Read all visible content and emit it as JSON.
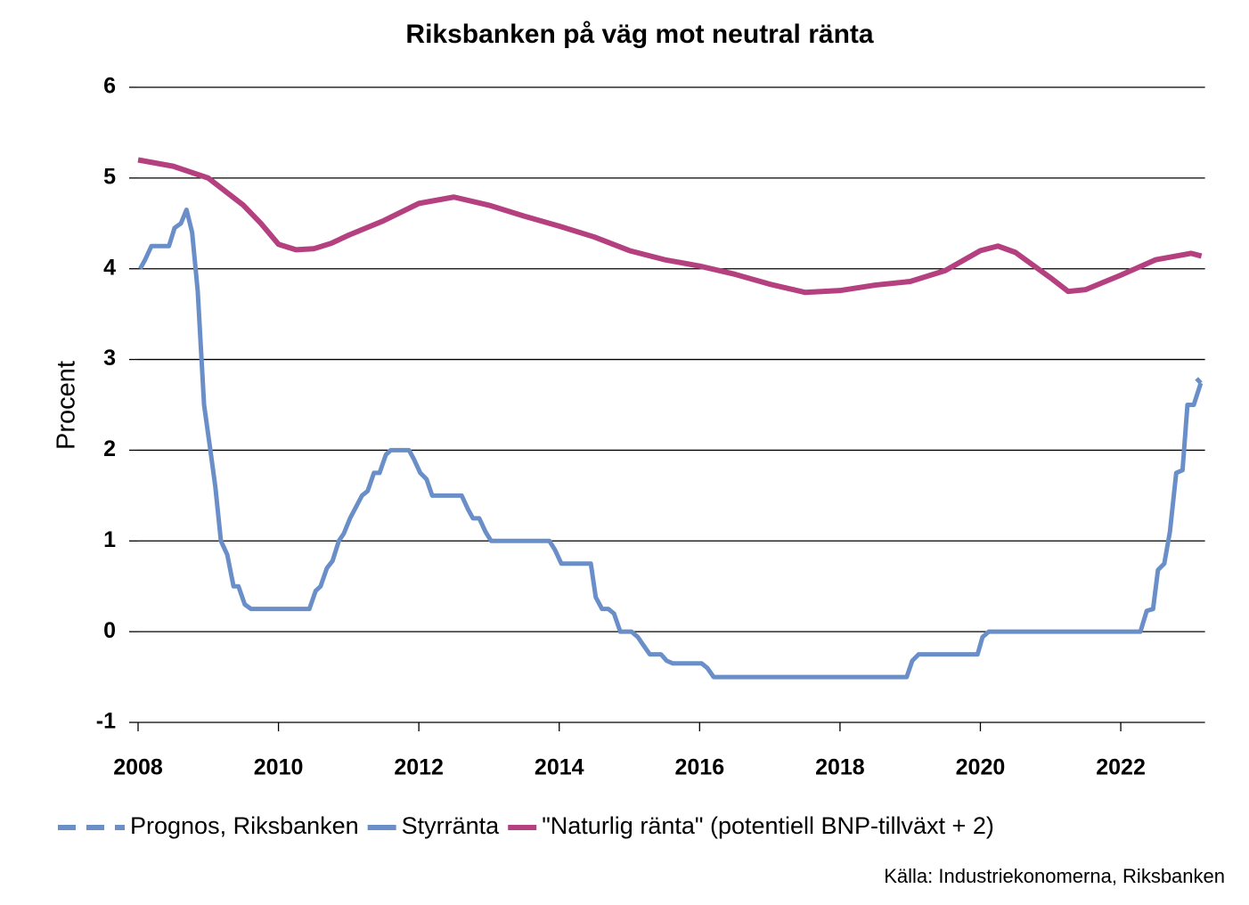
{
  "chart_data": {
    "type": "line",
    "title": "Riksbanken på väg mot neutral ränta",
    "y_label": "Procent",
    "source": "Källa: Industriekonomerna, Riksbanken",
    "xlim": [
      2008,
      2023.2
    ],
    "xticks": [
      2008,
      2010,
      2012,
      2014,
      2016,
      2018,
      2020,
      2022
    ],
    "ylim": [
      -1,
      6
    ],
    "yticks": [
      -1,
      0,
      1,
      2,
      3,
      4,
      5,
      6
    ],
    "grid": true,
    "legend": "bottom",
    "series": [
      {
        "name": "Prognos, Riksbanken",
        "color": "#6a8fc8",
        "dashed": true,
        "x": [
          2023.08,
          2023.14
        ],
        "values": [
          2.79,
          2.74
        ]
      },
      {
        "name": "Styrränta",
        "color": "#6a8fc8",
        "x": [
          2008.03,
          2008.1,
          2008.19,
          2008.44,
          2008.52,
          2008.61,
          2008.69,
          2008.77,
          2008.85,
          2008.94,
          2009.03,
          2009.1,
          2009.18,
          2009.27,
          2009.36,
          2009.43,
          2009.52,
          2009.61,
          2010.44,
          2010.53,
          2010.6,
          2010.69,
          2010.77,
          2010.86,
          2010.93,
          2011.02,
          2011.19,
          2011.27,
          2011.36,
          2011.44,
          2011.53,
          2011.6,
          2011.86,
          2011.93,
          2012.02,
          2012.11,
          2012.19,
          2012.61,
          2012.7,
          2012.77,
          2012.86,
          2012.95,
          2013.03,
          2013.86,
          2013.94,
          2014.03,
          2014.45,
          2014.52,
          2014.61,
          2014.7,
          2014.78,
          2014.87,
          2015.03,
          2015.12,
          2015.2,
          2015.29,
          2015.45,
          2015.53,
          2015.62,
          2016.03,
          2016.11,
          2016.2,
          2018.95,
          2019.03,
          2019.12,
          2019.96,
          2020.03,
          2020.12,
          2022.28,
          2022.37,
          2022.46,
          2022.53,
          2022.62,
          2022.7,
          2022.79,
          2022.88,
          2022.95,
          2023.04,
          2023.14
        ],
        "values": [
          4.0,
          4.1,
          4.25,
          4.25,
          4.45,
          4.5,
          4.65,
          4.4,
          3.75,
          2.5,
          2.0,
          1.6,
          1.0,
          0.85,
          0.5,
          0.5,
          0.3,
          0.25,
          0.25,
          0.45,
          0.5,
          0.7,
          0.78,
          1.0,
          1.08,
          1.25,
          1.5,
          1.55,
          1.75,
          1.75,
          1.95,
          2.0,
          2.0,
          1.9,
          1.75,
          1.68,
          1.5,
          1.5,
          1.35,
          1.25,
          1.25,
          1.1,
          1.0,
          1.0,
          0.9,
          0.75,
          0.75,
          0.38,
          0.25,
          0.25,
          0.2,
          0.0,
          0.0,
          -0.06,
          -0.15,
          -0.25,
          -0.25,
          -0.32,
          -0.35,
          -0.35,
          -0.4,
          -0.5,
          -0.5,
          -0.32,
          -0.25,
          -0.25,
          -0.06,
          0.0,
          0.0,
          0.23,
          0.25,
          0.68,
          0.75,
          1.1,
          1.75,
          1.78,
          2.5,
          2.5,
          2.74
        ]
      },
      {
        "name": "\"Naturlig ränta\" (potentiell BNP-tillväxt + 2)",
        "color": "#b5407f",
        "x": [
          2008,
          2008.5,
          2009,
          2009.5,
          2009.75,
          2010,
          2010.25,
          2010.5,
          2010.75,
          2011,
          2011.5,
          2012,
          2012.5,
          2013,
          2013.5,
          2014,
          2014.5,
          2015,
          2015.5,
          2016,
          2016.5,
          2017,
          2017.5,
          2018,
          2018.5,
          2019,
          2019.5,
          2020,
          2020.25,
          2020.5,
          2021,
          2021.25,
          2021.5,
          2022,
          2022.5,
          2023,
          2023.15
        ],
        "values": [
          5.2,
          5.13,
          5.0,
          4.7,
          4.5,
          4.27,
          4.21,
          4.22,
          4.28,
          4.37,
          4.53,
          4.72,
          4.79,
          4.7,
          4.58,
          4.47,
          4.35,
          4.2,
          4.1,
          4.03,
          3.94,
          3.83,
          3.74,
          3.76,
          3.82,
          3.86,
          3.98,
          4.2,
          4.25,
          4.18,
          3.9,
          3.75,
          3.77,
          3.93,
          4.1,
          4.17,
          4.14
        ]
      }
    ]
  }
}
